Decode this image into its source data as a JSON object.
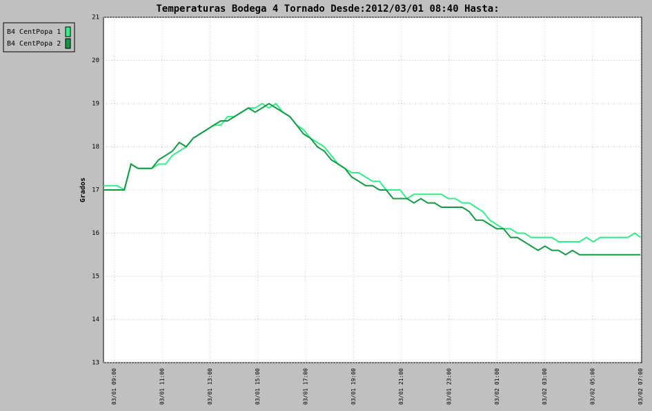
{
  "chart_data": {
    "type": "line",
    "title": "Temperaturas Bodega 4 Tornado Desde:2012/03/01 08:40 Hasta:",
    "y_label": "Grados",
    "x": [
      8.55,
      8.84,
      9.13,
      9.42,
      9.7,
      9.99,
      10.28,
      10.57,
      10.86,
      11.15,
      11.43,
      11.72,
      12.01,
      12.3,
      12.59,
      12.88,
      13.16,
      13.45,
      13.74,
      14.03,
      14.32,
      14.61,
      14.89,
      15.18,
      15.47,
      15.76,
      16.05,
      16.34,
      16.63,
      16.91,
      17.2,
      17.49,
      17.78,
      18.07,
      18.36,
      18.64,
      18.93,
      19.22,
      19.51,
      19.8,
      20.09,
      20.37,
      20.66,
      20.95,
      21.24,
      21.53,
      21.82,
      22.1,
      22.39,
      22.68,
      22.97,
      23.26,
      23.55,
      23.84,
      24.12,
      24.41,
      24.7,
      24.99,
      25.28,
      25.57,
      25.85,
      26.14,
      26.43,
      26.72,
      27.01,
      27.3,
      27.58,
      27.87,
      28.16,
      28.45,
      28.74,
      29.03,
      29.32,
      29.6,
      29.89,
      30.18,
      30.47,
      30.76,
      31.0
    ],
    "series": [
      {
        "name": "B4 CentPopa 1",
        "color": "#33ee88",
        "values": [
          17.1,
          17.1,
          17.1,
          17.0,
          17.6,
          17.5,
          17.5,
          17.5,
          17.6,
          17.6,
          17.8,
          17.9,
          18.0,
          18.2,
          18.3,
          18.4,
          18.5,
          18.5,
          18.7,
          18.7,
          18.8,
          18.9,
          18.9,
          19.0,
          18.9,
          19.0,
          18.8,
          18.7,
          18.5,
          18.4,
          18.2,
          18.1,
          18.0,
          17.8,
          17.6,
          17.5,
          17.4,
          17.4,
          17.3,
          17.2,
          17.2,
          17.0,
          17.0,
          17.0,
          16.8,
          16.9,
          16.9,
          16.9,
          16.9,
          16.9,
          16.8,
          16.8,
          16.7,
          16.7,
          16.6,
          16.5,
          16.3,
          16.2,
          16.1,
          16.1,
          16.0,
          16.0,
          15.9,
          15.9,
          15.9,
          15.9,
          15.8,
          15.8,
          15.8,
          15.8,
          15.9,
          15.8,
          15.9,
          15.9,
          15.9,
          15.9,
          15.9,
          16.0,
          15.9
        ]
      },
      {
        "name": "B4 CentPopa 2",
        "color": "#119944",
        "values": [
          17.0,
          17.0,
          17.0,
          17.0,
          17.6,
          17.5,
          17.5,
          17.5,
          17.7,
          17.8,
          17.9,
          18.1,
          18.0,
          18.2,
          18.3,
          18.4,
          18.5,
          18.6,
          18.6,
          18.7,
          18.8,
          18.9,
          18.8,
          18.9,
          19.0,
          18.9,
          18.8,
          18.7,
          18.5,
          18.3,
          18.2,
          18.0,
          17.9,
          17.7,
          17.6,
          17.5,
          17.3,
          17.2,
          17.1,
          17.1,
          17.0,
          17.0,
          16.8,
          16.8,
          16.8,
          16.7,
          16.8,
          16.7,
          16.7,
          16.6,
          16.6,
          16.6,
          16.6,
          16.5,
          16.3,
          16.3,
          16.2,
          16.1,
          16.1,
          15.9,
          15.9,
          15.8,
          15.7,
          15.6,
          15.7,
          15.6,
          15.6,
          15.5,
          15.6,
          15.5,
          15.5,
          15.5,
          15.5,
          15.5,
          15.5,
          15.5,
          15.5,
          15.5,
          15.5
        ]
      }
    ],
    "xlim": [
      8.55,
      31.05
    ],
    "xticks": [
      {
        "value": 9,
        "label": "03/01 09:00"
      },
      {
        "value": 11,
        "label": "03/01 11:00"
      },
      {
        "value": 13,
        "label": "03/01 13:00"
      },
      {
        "value": 15,
        "label": "03/01 15:00"
      },
      {
        "value": 17,
        "label": "03/01 17:00"
      },
      {
        "value": 19,
        "label": "03/01 19:00"
      },
      {
        "value": 21,
        "label": "03/01 21:00"
      },
      {
        "value": 23,
        "label": "03/01 23:00"
      },
      {
        "value": 25,
        "label": "03/02 01:00"
      },
      {
        "value": 27,
        "label": "03/02 03:00"
      },
      {
        "value": 29,
        "label": "03/02 05:00"
      },
      {
        "value": 31,
        "label": "03/02 07:00"
      }
    ],
    "ylim": [
      13,
      21
    ],
    "yticks": [
      13,
      14,
      15,
      16,
      17,
      18,
      19,
      20,
      21
    ],
    "grid": true
  }
}
